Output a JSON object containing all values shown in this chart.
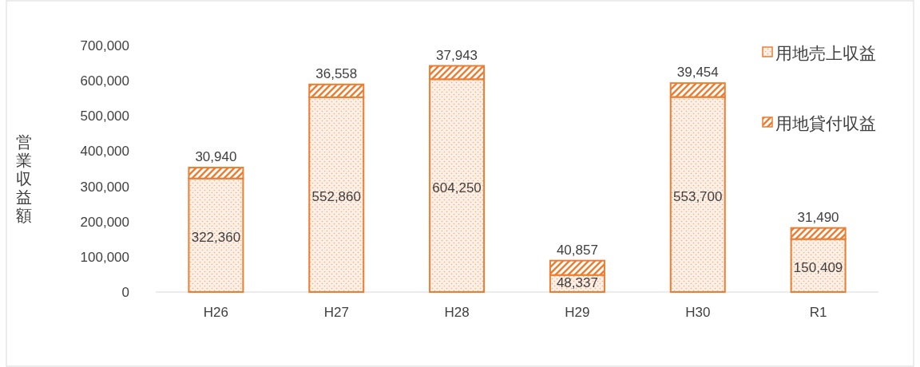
{
  "chart_data": {
    "type": "bar",
    "stacked": true,
    "ylabel": "営業収益額",
    "categories": [
      "H26",
      "H27",
      "H28",
      "H29",
      "H30",
      "R1"
    ],
    "series": [
      {
        "name": "用地売上収益",
        "color": "#ed7d31",
        "values": [
          322360,
          552860,
          604250,
          48337,
          553700,
          150409
        ],
        "value_labels": [
          "322,360",
          "552,860",
          "604,250",
          "48,337",
          "553,700",
          "150,409"
        ]
      },
      {
        "name": "用地貸付収益",
        "color": "#ed7d31",
        "values": [
          30940,
          36558,
          37943,
          40857,
          39454,
          31490
        ],
        "value_labels": [
          "30,940",
          "36,558",
          "37,943",
          "40,857",
          "39,454",
          "31,490"
        ]
      }
    ],
    "ylim": [
      0,
      700000
    ],
    "yticks": [
      0,
      {
        "value": 100000,
        "label": "100,000"
      },
      {
        "value": 200000,
        "label": "200,000"
      },
      {
        "value": 300000,
        "label": "300,000"
      },
      {
        "value": 400000,
        "label": "400,000"
      },
      {
        "value": 500000,
        "label": "500,000"
      },
      {
        "value": 600000,
        "label": "600,000"
      },
      {
        "value": 700000,
        "label": "700,000"
      }
    ],
    "legend": "top right"
  }
}
